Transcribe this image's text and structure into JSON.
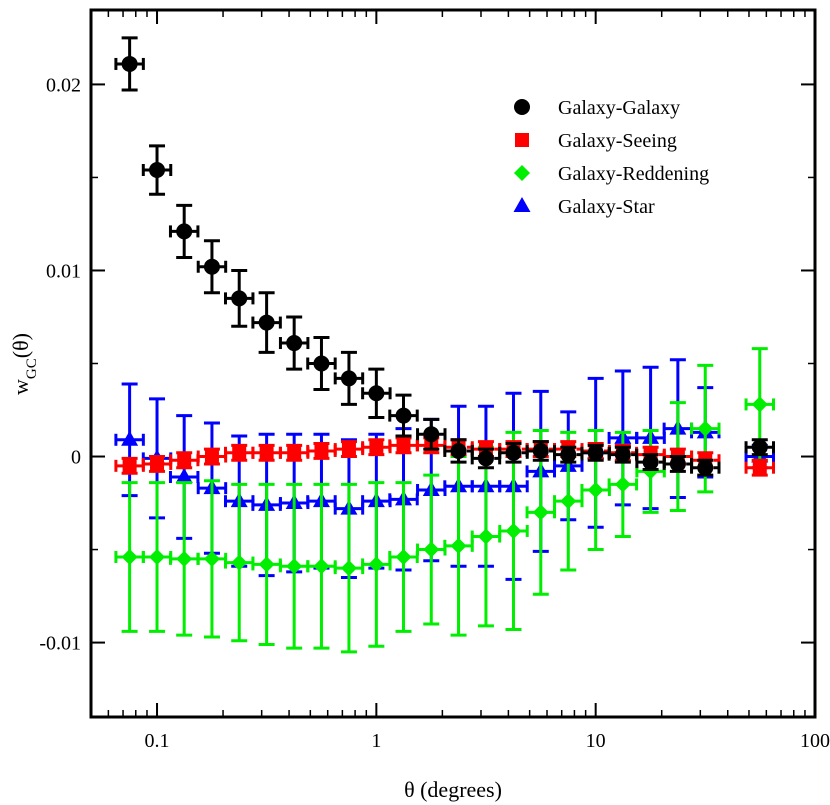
{
  "chart_data": {
    "type": "scatter",
    "title": "",
    "xlabel": "θ (degrees)",
    "ylabel_main": "w",
    "ylabel_sub": "GC",
    "ylabel_tail": "(θ)",
    "xscale": "log",
    "xlim": [
      0.05,
      100
    ],
    "ylim": [
      -0.014,
      0.024
    ],
    "x_ticks": [
      {
        "value": 0.1,
        "label": "0.1"
      },
      {
        "value": 1,
        "label": "1"
      },
      {
        "value": 10,
        "label": "10"
      },
      {
        "value": 100,
        "label": "100"
      }
    ],
    "y_ticks": [
      {
        "value": 0.02,
        "label": "0.02"
      },
      {
        "value": 0.01,
        "label": "0.01"
      },
      {
        "value": 0,
        "label": "0"
      },
      {
        "value": -0.01,
        "label": "-0.01"
      }
    ],
    "legend_position": "top-right",
    "series": [
      {
        "name": "Galaxy-Galaxy",
        "color": "#000000",
        "marker": "circle",
        "x": [
          0.075,
          0.1,
          0.133,
          0.178,
          0.237,
          0.316,
          0.422,
          0.562,
          0.75,
          1.0,
          1.33,
          1.78,
          2.37,
          3.16,
          4.22,
          5.62,
          7.5,
          10.0,
          13.3,
          17.8,
          23.7,
          31.6,
          56.0
        ],
        "y": [
          0.0211,
          0.0154,
          0.0121,
          0.0102,
          0.0085,
          0.0072,
          0.0061,
          0.005,
          0.0042,
          0.0034,
          0.0022,
          0.0012,
          0.0003,
          -0.0001,
          0.0002,
          0.0003,
          0.0001,
          0.0002,
          0.0001,
          -0.0003,
          -0.0004,
          -0.0006,
          0.0005
        ],
        "yerr": [
          0.0014,
          0.0013,
          0.0014,
          0.0014,
          0.0015,
          0.0016,
          0.0014,
          0.0014,
          0.0014,
          0.0013,
          0.0011,
          0.0008,
          0.0006,
          0.0005,
          0.0005,
          0.0005,
          0.0004,
          0.0004,
          0.0004,
          0.0004,
          0.0004,
          0.0004,
          0.0004
        ]
      },
      {
        "name": "Galaxy-Seeing",
        "color": "#ff0000",
        "marker": "square",
        "x": [
          0.075,
          0.1,
          0.133,
          0.178,
          0.237,
          0.316,
          0.422,
          0.562,
          0.75,
          1.0,
          1.33,
          1.78,
          2.37,
          3.16,
          4.22,
          5.62,
          7.5,
          10.0,
          13.3,
          17.8,
          23.7,
          31.6,
          56.0
        ],
        "y": [
          -0.0005,
          -0.0004,
          -0.0002,
          0.0,
          0.0002,
          0.0002,
          0.0002,
          0.0003,
          0.0004,
          0.0005,
          0.0006,
          0.0006,
          0.0005,
          0.0004,
          0.0004,
          0.0004,
          0.0004,
          0.0003,
          0.0002,
          0.0001,
          0.0,
          -0.0002,
          -0.0006
        ],
        "yerr": [
          0.0004,
          0.0004,
          0.0004,
          0.0004,
          0.0004,
          0.0004,
          0.0004,
          0.0004,
          0.0004,
          0.0004,
          0.0004,
          0.0004,
          0.0004,
          0.0004,
          0.0004,
          0.0004,
          0.0004,
          0.0004,
          0.0004,
          0.0004,
          0.0004,
          0.0004,
          0.0004
        ]
      },
      {
        "name": "Galaxy-Reddening",
        "color": "#00ee00",
        "marker": "diamond",
        "x": [
          0.075,
          0.1,
          0.133,
          0.178,
          0.237,
          0.316,
          0.422,
          0.562,
          0.75,
          1.0,
          1.33,
          1.78,
          2.37,
          3.16,
          4.22,
          5.62,
          7.5,
          10.0,
          13.3,
          17.8,
          23.7,
          31.6,
          56.0
        ],
        "y": [
          -0.0054,
          -0.0054,
          -0.0055,
          -0.0055,
          -0.0057,
          -0.0058,
          -0.0059,
          -0.0059,
          -0.006,
          -0.0058,
          -0.0054,
          -0.005,
          -0.0048,
          -0.0043,
          -0.004,
          -0.003,
          -0.0024,
          -0.0018,
          -0.0015,
          -0.0008,
          0.0,
          0.0015,
          0.0028
        ],
        "yerr": [
          0.004,
          0.004,
          0.0041,
          0.0042,
          0.0042,
          0.0043,
          0.0044,
          0.0044,
          0.0045,
          0.0044,
          0.004,
          0.004,
          0.0048,
          0.0048,
          0.0053,
          0.0044,
          0.0037,
          0.0032,
          0.0028,
          0.0022,
          0.0029,
          0.0034,
          0.003
        ]
      },
      {
        "name": "Galaxy-Star",
        "color": "#0000ff",
        "marker": "triangle",
        "x": [
          0.075,
          0.1,
          0.133,
          0.178,
          0.237,
          0.316,
          0.422,
          0.562,
          0.75,
          1.0,
          1.33,
          1.78,
          2.37,
          3.16,
          4.22,
          5.62,
          7.5,
          10.0,
          13.3,
          17.8,
          23.7,
          31.6,
          56.0
        ],
        "y": [
          0.0009,
          -0.0001,
          -0.0011,
          -0.0017,
          -0.0024,
          -0.0026,
          -0.0025,
          -0.0024,
          -0.0028,
          -0.0024,
          -0.0023,
          -0.0018,
          -0.0016,
          -0.0016,
          -0.0016,
          -0.0008,
          -0.0005,
          0.0002,
          0.001,
          0.001,
          0.0015,
          0.0013,
          0.0
        ],
        "yerr": [
          0.003,
          0.0032,
          0.0033,
          0.0035,
          0.0035,
          0.0038,
          0.0037,
          0.0036,
          0.0037,
          0.0036,
          0.0038,
          0.0038,
          0.0043,
          0.0043,
          0.005,
          0.0043,
          0.0029,
          0.004,
          0.0036,
          0.0038,
          0.0037,
          0.0024,
          0.0006
        ]
      }
    ]
  }
}
